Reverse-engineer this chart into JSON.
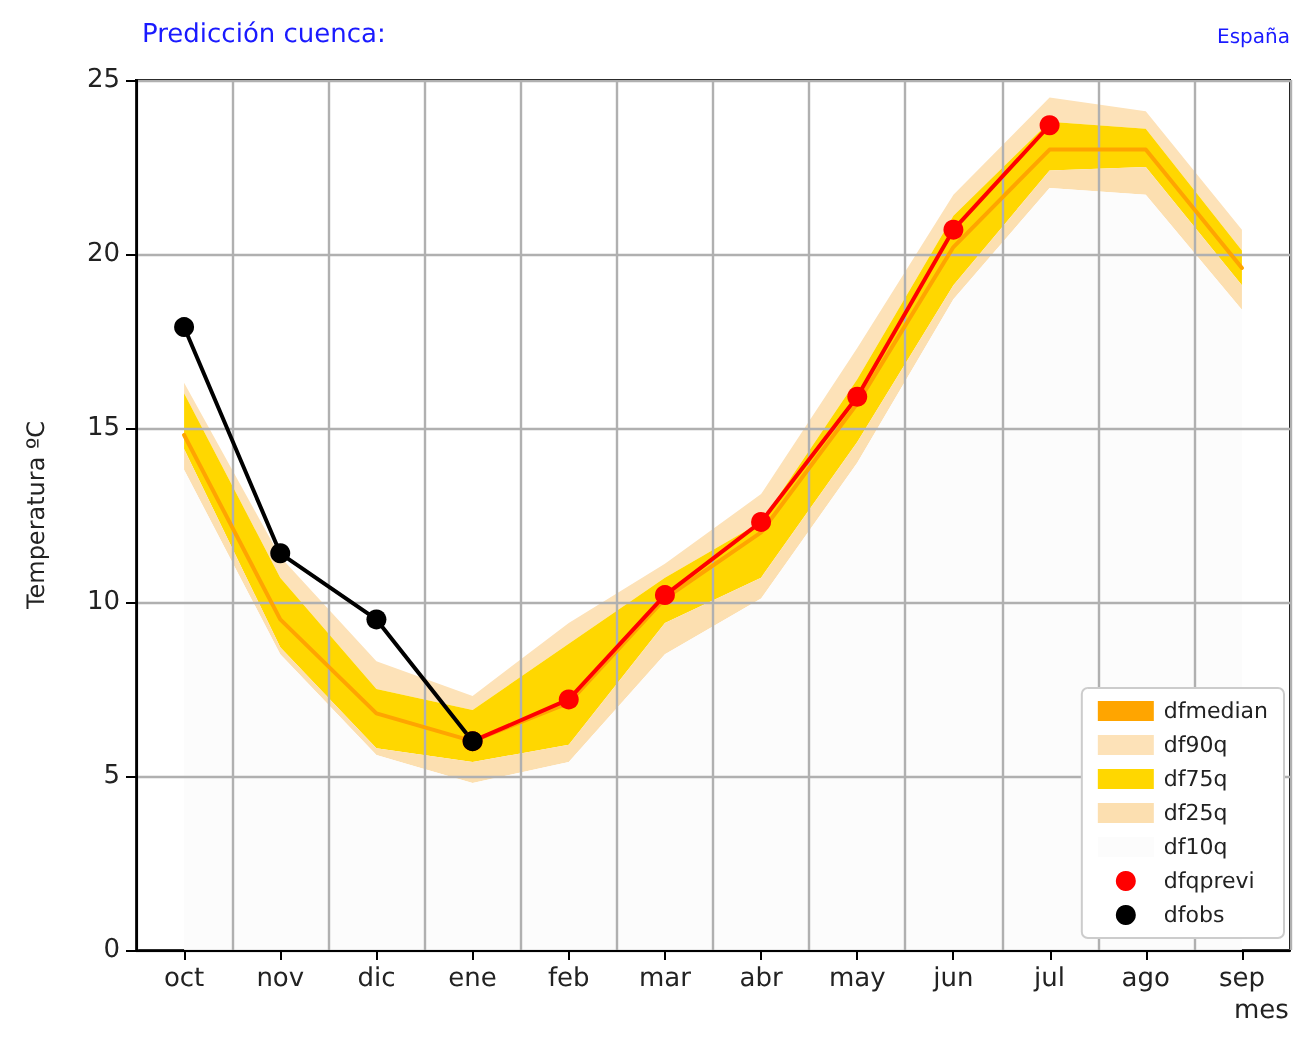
{
  "chart_data": {
    "type": "line",
    "title": "Predicción cuenca:",
    "subtitle": "España",
    "xlabel": "mes",
    "ylabel": "Temperatura ºC",
    "categories": [
      "oct",
      "nov",
      "dic",
      "ene",
      "feb",
      "mar",
      "abr",
      "may",
      "jun",
      "jul",
      "ago",
      "sep"
    ],
    "series": [
      {
        "name": "dfmedian",
        "color": "#ffa500",
        "marker": "none",
        "values": [
          14.8,
          9.5,
          6.8,
          6.0,
          7.1,
          10.1,
          12.0,
          15.7,
          20.2,
          23.0,
          23.0,
          19.6
        ]
      },
      {
        "name": "df90q",
        "type": "area",
        "color": "#fde2b8",
        "values": [
          16.3,
          11.3,
          8.3,
          7.3,
          9.4,
          11.1,
          13.1,
          17.3,
          21.7,
          24.5,
          24.1,
          20.7
        ]
      },
      {
        "name": "df75q",
        "type": "area",
        "color": "#ffd700",
        "values": [
          16.0,
          10.7,
          7.5,
          6.9,
          8.8,
          10.7,
          12.3,
          16.4,
          21.1,
          23.8,
          23.6,
          20.1
        ]
      },
      {
        "name": "df25q",
        "type": "area",
        "color": "#fcdfb0",
        "values": [
          14.4,
          8.7,
          5.8,
          5.4,
          5.9,
          9.4,
          10.7,
          14.6,
          19.1,
          22.4,
          22.5,
          19.1
        ]
      },
      {
        "name": "df10q",
        "type": "area",
        "color": "#fcfcfc",
        "values": [
          13.8,
          8.5,
          5.6,
          4.8,
          5.4,
          8.5,
          10.1,
          14.0,
          18.7,
          21.9,
          21.7,
          18.4
        ]
      },
      {
        "name": "dfqprevi",
        "color": "#ff0000",
        "marker": "circle",
        "values": [
          null,
          null,
          null,
          6.0,
          7.2,
          10.2,
          12.3,
          15.9,
          20.7,
          23.7,
          null,
          null
        ]
      },
      {
        "name": "dfobs",
        "color": "#000000",
        "marker": "circle",
        "values": [
          17.9,
          11.4,
          9.5,
          6.0,
          null,
          null,
          null,
          null,
          null,
          null,
          null,
          null
        ]
      }
    ],
    "ylim": [
      0,
      25
    ],
    "yticks": [
      0,
      5,
      10,
      15,
      20,
      25
    ],
    "grid": true,
    "legend": "bottom right"
  }
}
